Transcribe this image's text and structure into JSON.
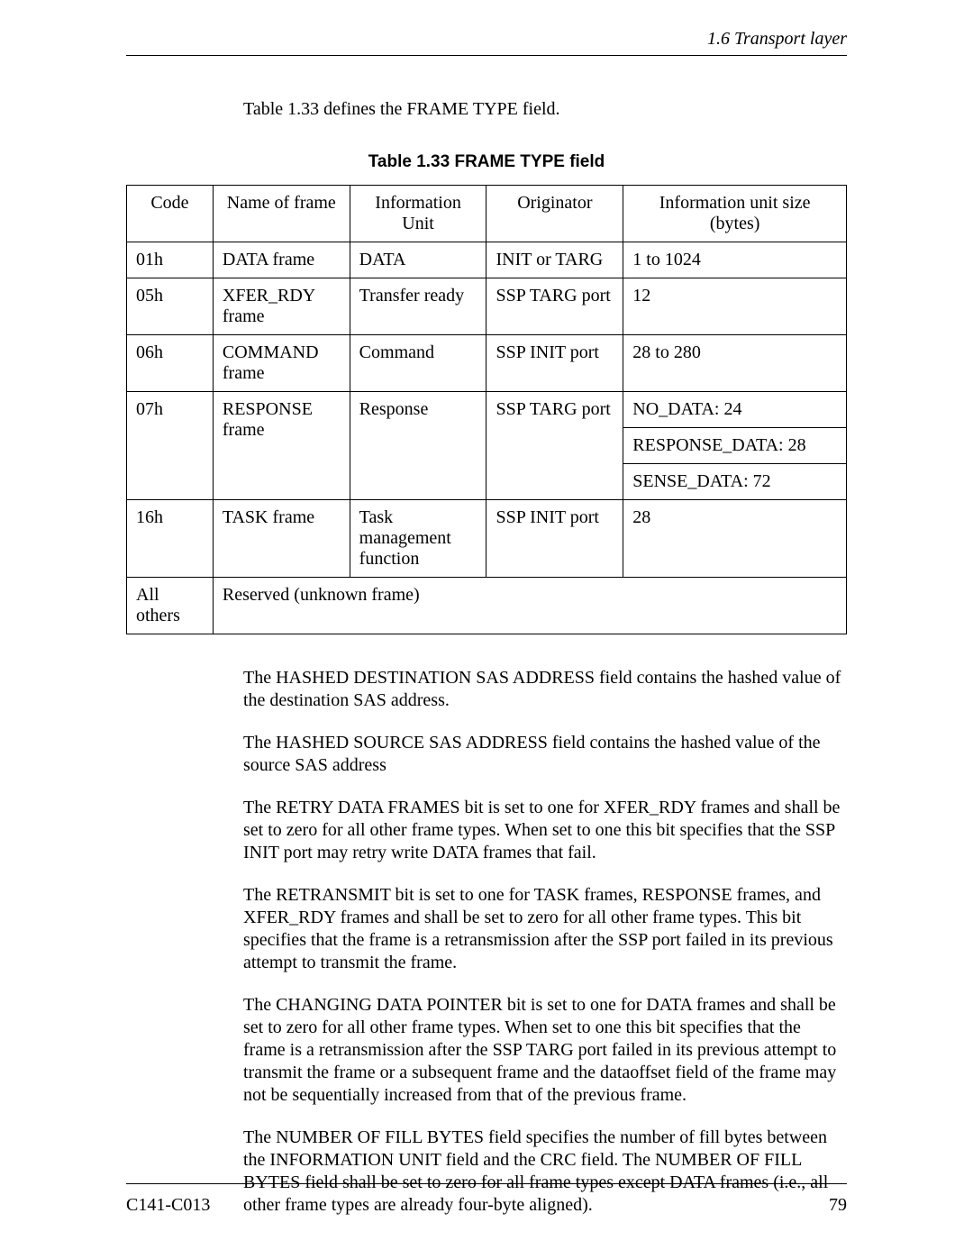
{
  "header": {
    "section_label": "1.6   Transport layer"
  },
  "intro": "Table 1.33 defines the FRAME TYPE field.",
  "table": {
    "title": "Table 1.33  FRAME TYPE field",
    "columns": [
      "Code",
      "Name of frame",
      "Information Unit",
      "Originator",
      "Information unit size (bytes)"
    ],
    "rows": [
      {
        "code": "01h",
        "name": "DATA frame",
        "info": "DATA",
        "orig": "INIT or TARG",
        "size": [
          "1 to 1024"
        ]
      },
      {
        "code": "05h",
        "name": "XFER_RDY frame",
        "info": "Transfer ready",
        "orig": "SSP TARG port",
        "size": [
          "12"
        ]
      },
      {
        "code": "06h",
        "name": "COMMAND frame",
        "info": "Command",
        "orig": "SSP INIT port",
        "size": [
          "28 to 280"
        ]
      },
      {
        "code": "07h",
        "name": "RESPONSE frame",
        "info": "Response",
        "orig": "SSP TARG port",
        "size": [
          "NO_DATA: 24",
          "RESPONSE_DATA: 28",
          "SENSE_DATA: 72"
        ]
      },
      {
        "code": "16h",
        "name": "TASK frame",
        "info": "Task management function",
        "orig": "SSP INIT port",
        "size": [
          "28"
        ]
      },
      {
        "code": "All others",
        "merged": "Reserved (unknown frame)"
      }
    ]
  },
  "paragraphs": [
    "The HASHED DESTINATION SAS ADDRESS field contains the hashed value of the destination SAS address.",
    "The HASHED SOURCE SAS ADDRESS field contains the hashed value of the source SAS address",
    "The RETRY DATA FRAMES bit is set to one for XFER_RDY frames and shall be set to zero for all other frame types.  When set to one this bit specifies that the SSP INIT port may retry write DATA frames that fail.",
    "The RETRANSMIT bit is set to one for TASK frames, RESPONSE frames, and XFER_RDY frames and shall be set to zero for all other frame types.  This bit specifies that the frame is a retransmission after the SSP port failed in its previous attempt to transmit the frame.",
    "The CHANGING DATA POINTER bit is set to one for DATA frames and shall be set to zero for all other frame types.  When set to one this bit specifies that the frame is a retransmission after the SSP TARG port failed in its previous attempt to transmit the frame or a subsequent frame and the dataoffset field of the frame may not be sequentially increased from that of the previous frame.",
    "The NUMBER OF FILL BYTES field specifies the number of fill bytes between the INFORMATION UNIT field and the CRC field.  The NUMBER OF FILL BYTES field shall be set to zero for all frame types except DATA frames (i.e., all other frame types are already four-byte aligned)."
  ],
  "footer": {
    "doc_id": "C141-C013",
    "page_number": "79"
  }
}
